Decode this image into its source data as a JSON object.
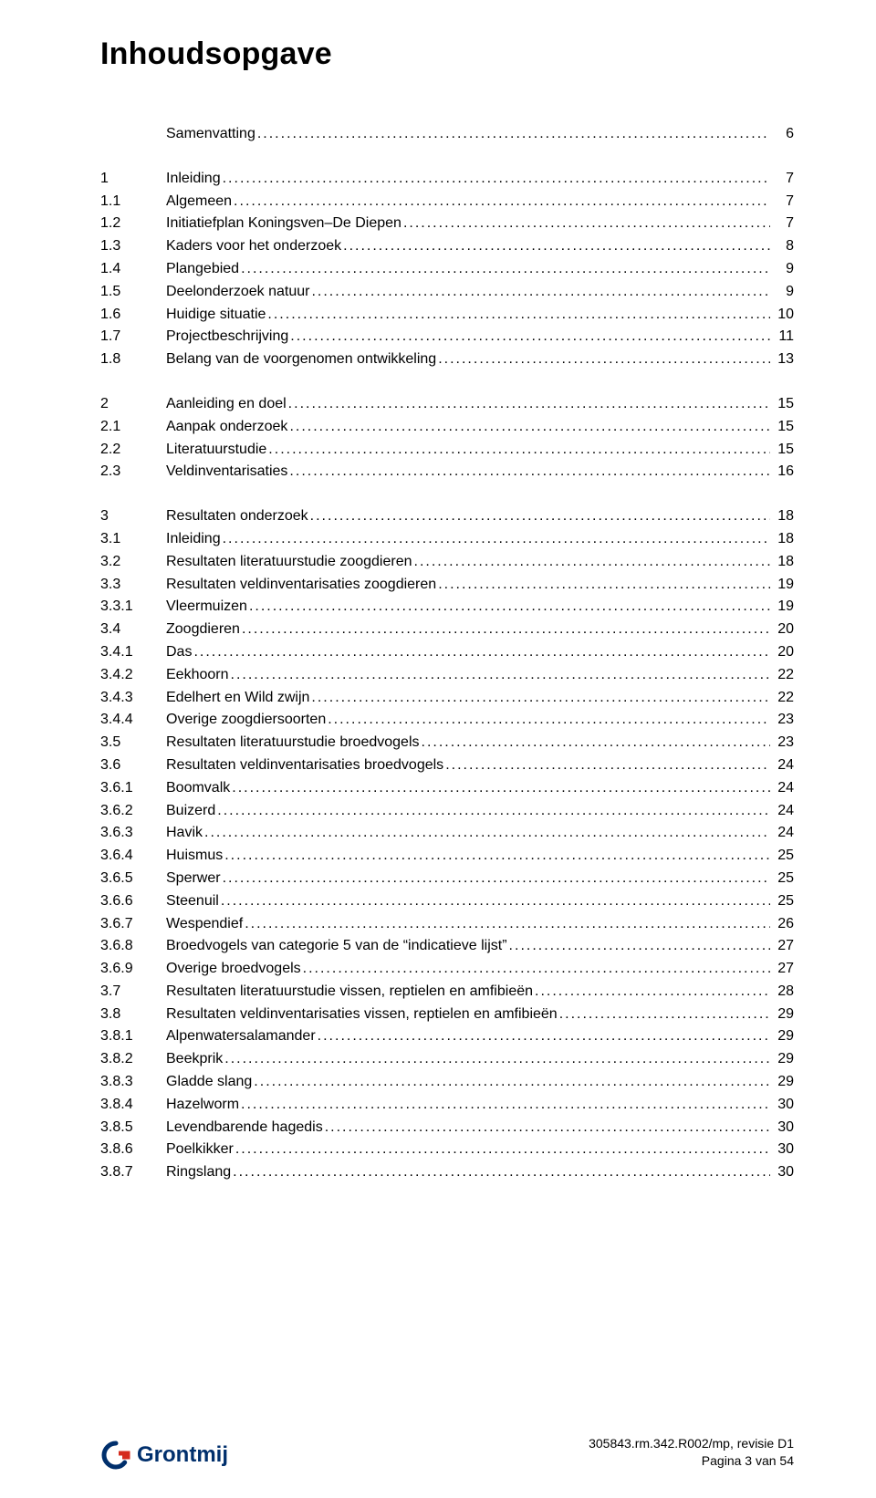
{
  "title": "Inhoudsopgave",
  "colors": {
    "text": "#000000",
    "background": "#ffffff",
    "logo_blue": "#002f6c",
    "logo_red": "#d52b1e"
  },
  "groups": [
    {
      "entries": [
        {
          "num": "",
          "label": "Samenvatting",
          "page": "6"
        }
      ]
    },
    {
      "entries": [
        {
          "num": "1",
          "label": "Inleiding",
          "page": "7"
        },
        {
          "num": "1.1",
          "label": "Algemeen",
          "page": "7"
        },
        {
          "num": "1.2",
          "label": "Initiatiefplan Koningsven–De Diepen",
          "page": "7"
        },
        {
          "num": "1.3",
          "label": "Kaders voor het onderzoek",
          "page": "8"
        },
        {
          "num": "1.4",
          "label": "Plangebied",
          "page": "9"
        },
        {
          "num": "1.5",
          "label": "Deelonderzoek natuur",
          "page": "9"
        },
        {
          "num": "1.6",
          "label": "Huidige situatie",
          "page": "10"
        },
        {
          "num": "1.7",
          "label": "Projectbeschrijving",
          "page": "11"
        },
        {
          "num": "1.8",
          "label": "Belang van de voorgenomen ontwikkeling",
          "page": "13"
        }
      ]
    },
    {
      "entries": [
        {
          "num": "2",
          "label": "Aanleiding en doel",
          "page": "15"
        },
        {
          "num": "2.1",
          "label": "Aanpak onderzoek",
          "page": "15"
        },
        {
          "num": "2.2",
          "label": "Literatuurstudie",
          "page": "15"
        },
        {
          "num": "2.3",
          "label": "Veldinventarisaties",
          "page": "16"
        }
      ]
    },
    {
      "entries": [
        {
          "num": "3",
          "label": "Resultaten onderzoek",
          "page": "18"
        },
        {
          "num": "3.1",
          "label": "Inleiding",
          "page": "18"
        },
        {
          "num": "3.2",
          "label": "Resultaten literatuurstudie zoogdieren",
          "page": "18"
        },
        {
          "num": "3.3",
          "label": "Resultaten veldinventarisaties zoogdieren",
          "page": "19"
        },
        {
          "num": "3.3.1",
          "label": "Vleermuizen",
          "page": "19"
        },
        {
          "num": "3.4",
          "label": "Zoogdieren",
          "page": "20"
        },
        {
          "num": "3.4.1",
          "label": "Das",
          "page": "20"
        },
        {
          "num": "3.4.2",
          "label": "Eekhoorn",
          "page": "22"
        },
        {
          "num": "3.4.3",
          "label": "Edelhert en Wild zwijn",
          "page": "22"
        },
        {
          "num": "3.4.4",
          "label": "Overige zoogdiersoorten",
          "page": "23"
        },
        {
          "num": "3.5",
          "label": "Resultaten literatuurstudie broedvogels",
          "page": "23"
        },
        {
          "num": "3.6",
          "label": "Resultaten veldinventarisaties broedvogels",
          "page": "24"
        },
        {
          "num": "3.6.1",
          "label": "Boomvalk",
          "page": "24"
        },
        {
          "num": "3.6.2",
          "label": "Buizerd",
          "page": "24"
        },
        {
          "num": "3.6.3",
          "label": "Havik",
          "page": "24"
        },
        {
          "num": "3.6.4",
          "label": "Huismus",
          "page": "25"
        },
        {
          "num": "3.6.5",
          "label": "Sperwer",
          "page": "25"
        },
        {
          "num": "3.6.6",
          "label": "Steenuil",
          "page": "25"
        },
        {
          "num": "3.6.7",
          "label": "Wespendief",
          "page": "26"
        },
        {
          "num": "3.6.8",
          "label": "Broedvogels van categorie 5 van de “indicatieve lijst”",
          "page": "27"
        },
        {
          "num": "3.6.9",
          "label": "Overige broedvogels",
          "page": "27"
        },
        {
          "num": "3.7",
          "label": "Resultaten literatuurstudie vissen, reptielen en amfibieën",
          "page": "28"
        },
        {
          "num": "3.8",
          "label": "Resultaten veldinventarisaties vissen, reptielen en amfibieën",
          "page": "29"
        },
        {
          "num": "3.8.1",
          "label": "Alpenwatersalamander",
          "page": "29"
        },
        {
          "num": "3.8.2",
          "label": "Beekprik",
          "page": "29"
        },
        {
          "num": "3.8.3",
          "label": "Gladde slang",
          "page": "29"
        },
        {
          "num": "3.8.4",
          "label": "Hazelworm",
          "page": "30"
        },
        {
          "num": "3.8.5",
          "label": "Levendbarende hagedis",
          "page": "30"
        },
        {
          "num": "3.8.6",
          "label": "Poelkikker",
          "page": "30"
        },
        {
          "num": "3.8.7",
          "label": "Ringslang",
          "page": "30"
        }
      ]
    }
  ],
  "footer": {
    "logo_text": "Grontmij",
    "doc_ref": "305843.rm.342.R002/mp, revisie D1",
    "page_label": "Pagina 3 van 54"
  }
}
